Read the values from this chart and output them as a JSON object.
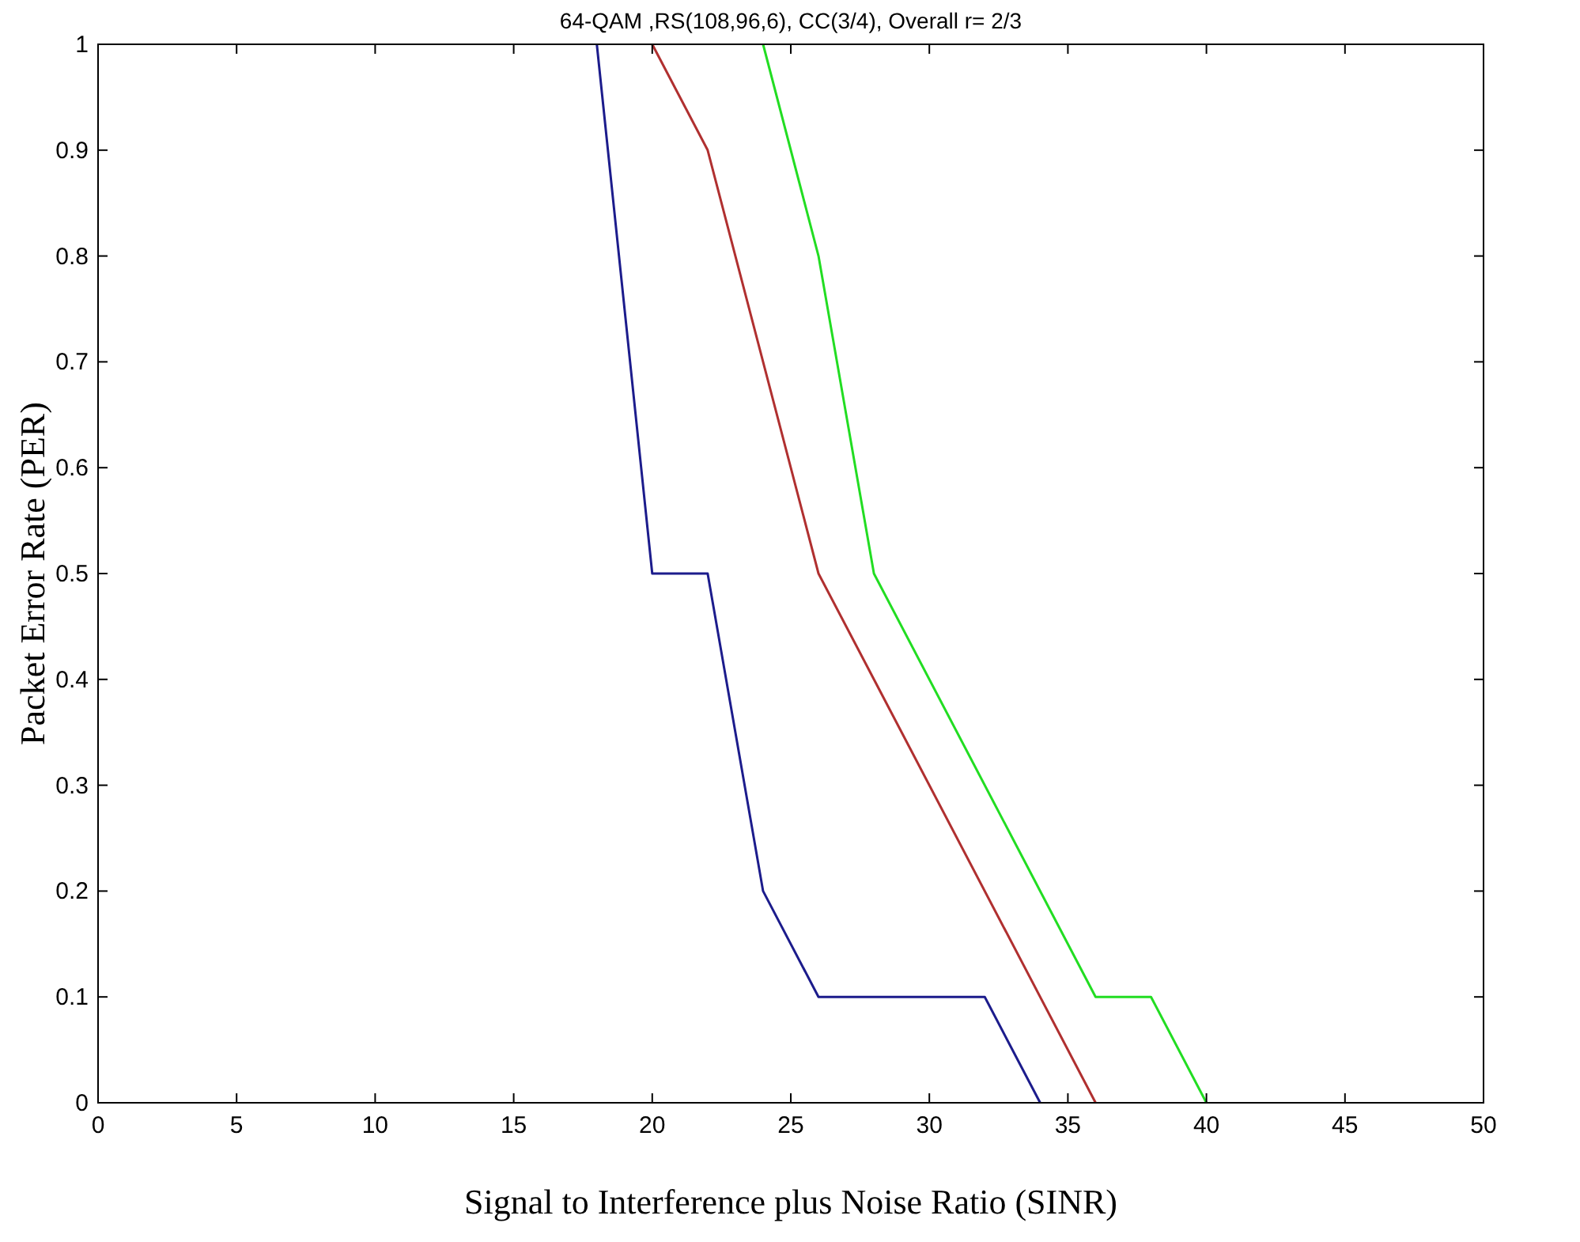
{
  "chart_data": {
    "type": "line",
    "title": "64-QAM ,RS(108,96,6), CC(3/4), Overall r= 2/3",
    "xlabel": "Signal to Interference plus Noise Ratio (SINR)",
    "ylabel": "Packet Error Rate (PER)",
    "xlim": [
      0,
      50
    ],
    "xticks": [
      0,
      5,
      10,
      15,
      20,
      25,
      30,
      35,
      40,
      45,
      50
    ],
    "ylim": [
      0,
      1
    ],
    "yticks": [
      0,
      0.1,
      0.2,
      0.3,
      0.4,
      0.5,
      0.6,
      0.7,
      0.8,
      0.9,
      1
    ],
    "grid": false,
    "line_style": "solid",
    "series": [
      {
        "color": "#1c1c8c",
        "x": [
          18,
          20,
          22,
          24,
          26,
          32,
          34
        ],
        "values": [
          1,
          0.5,
          0.5,
          0.2,
          0.1,
          0.1,
          0
        ]
      },
      {
        "color": "#b03030",
        "x": [
          20,
          22,
          26,
          28,
          36
        ],
        "values": [
          1,
          0.9,
          0.5,
          0.4,
          0
        ]
      },
      {
        "color": "#22dd22",
        "x": [
          24,
          26,
          28,
          36,
          38,
          40
        ],
        "values": [
          1,
          0.8,
          0.5,
          0.1,
          0.1,
          0
        ]
      }
    ]
  }
}
